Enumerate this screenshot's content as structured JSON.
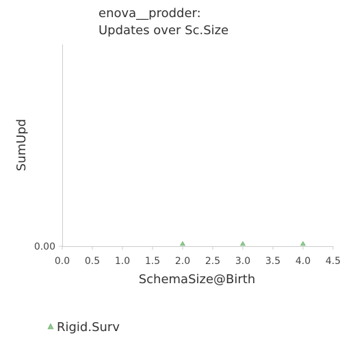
{
  "chart_data": {
    "type": "scatter",
    "title_lines": [
      "enova__prodder:",
      "Updates over Sc.Size"
    ],
    "xlabel": "SchemaSize@Birth",
    "ylabel": "SumUpd",
    "xlim": [
      0,
      4.5
    ],
    "x_ticks": [
      "0.0",
      "0.5",
      "1.0",
      "1.5",
      "2.0",
      "2.5",
      "3.0",
      "3.5",
      "4.0",
      "4.5"
    ],
    "y_ticks": [
      "0.00"
    ],
    "grid": false,
    "legend_position": "bottom-left",
    "series": [
      {
        "name": "Rigid.Surv",
        "marker": "triangle",
        "color": "#90c890",
        "points": [
          {
            "x": 2.0,
            "y": 0
          },
          {
            "x": 3.0,
            "y": 0
          },
          {
            "x": 4.0,
            "y": 0
          }
        ]
      }
    ]
  }
}
